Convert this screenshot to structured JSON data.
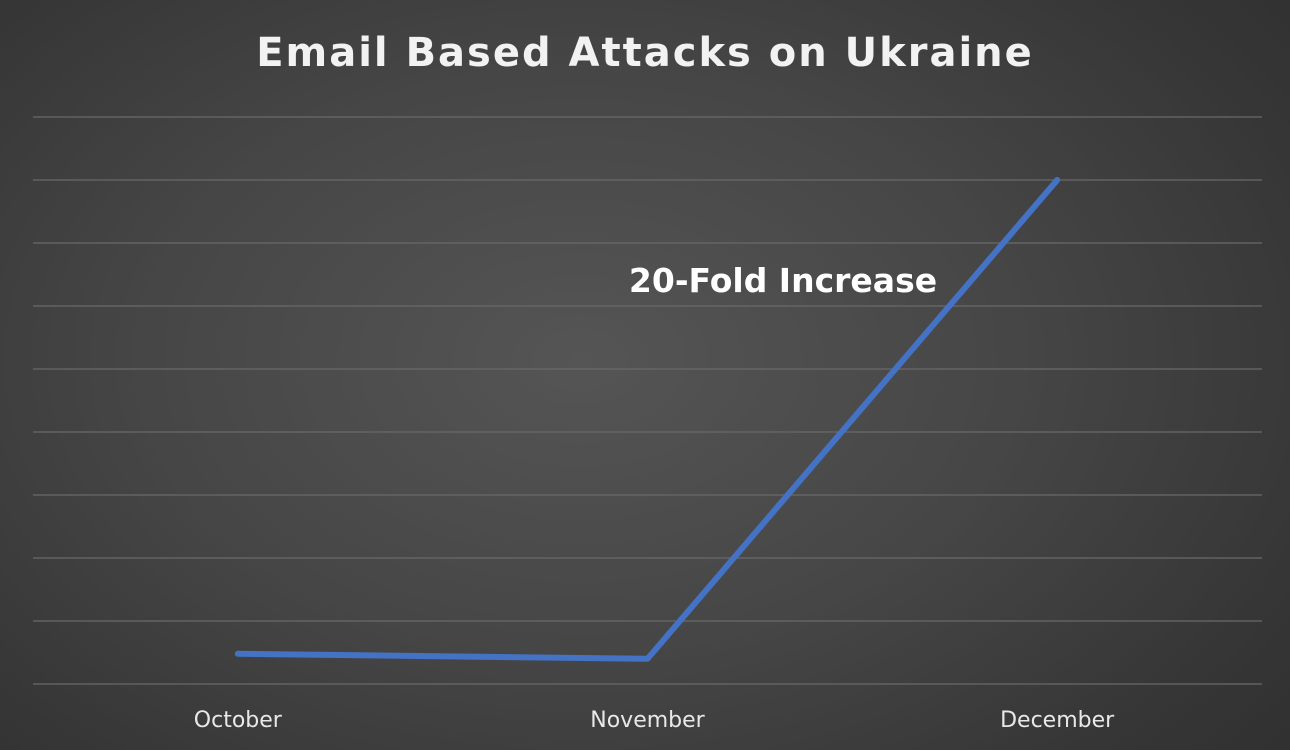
{
  "chart_data": {
    "type": "line",
    "title": "Email Based Attacks on Ukraine",
    "xlabel": "",
    "ylabel": "",
    "categories": [
      "October",
      "November",
      "December"
    ],
    "series": [
      {
        "values": [
          1.2,
          1.0,
          20
        ]
      }
    ],
    "ylim": [
      0,
      22.5
    ],
    "grid": true,
    "y_tick_labels_visible": false,
    "annotations": [
      {
        "text": "20-Fold Increase"
      }
    ],
    "colors": {
      "series": "#4472c4",
      "background": "#454545",
      "gridline": "#6a6a6a",
      "text": "#f2f2f2"
    }
  }
}
